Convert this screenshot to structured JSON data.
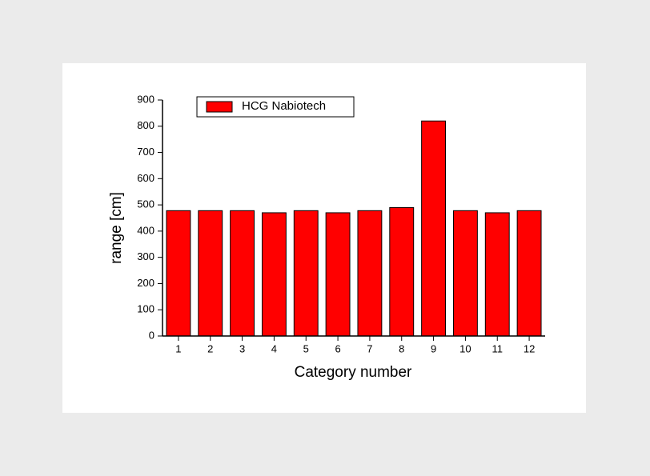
{
  "chart_data": {
    "type": "bar",
    "categories": [
      "1",
      "2",
      "3",
      "4",
      "5",
      "6",
      "7",
      "8",
      "9",
      "10",
      "11",
      "12"
    ],
    "series": [
      {
        "name": "HCG Nabiotech",
        "color": "#ff0000",
        "values": [
          478,
          478,
          478,
          470,
          478,
          470,
          478,
          490,
          820,
          478,
          470,
          478
        ]
      }
    ],
    "x_label": "Category number",
    "y_label": "range [cm]",
    "ylim": [
      0,
      900
    ],
    "yticks": [
      0,
      100,
      200,
      300,
      400,
      500,
      600,
      700,
      800,
      900
    ],
    "legend": "top-left"
  }
}
